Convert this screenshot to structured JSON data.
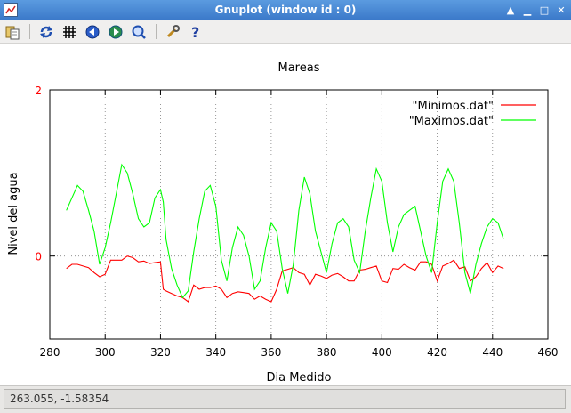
{
  "window": {
    "title": "Gnuplot (window id : 0)"
  },
  "toolbar": {
    "icons": [
      "copy-clipboard-icon",
      "replot-icon",
      "grid-icon",
      "previous-zoom-icon",
      "next-zoom-icon",
      "autoscale-icon",
      "options-wrench-icon",
      "help-icon"
    ]
  },
  "status": {
    "text": "263.055, -1.58354"
  },
  "colors": {
    "minimos": "#ff0000",
    "maximos": "#00ff00",
    "ytick": "#ff0000"
  },
  "chart_data": {
    "type": "line",
    "title": "Mareas",
    "xlabel": "Dia Medido",
    "ylabel": "Nivel del agua",
    "xlim": [
      280,
      460
    ],
    "ylim": [
      -1,
      2
    ],
    "xticks": [
      "280",
      "300",
      "320",
      "340",
      "360",
      "380",
      "400",
      "420",
      "440",
      "460"
    ],
    "yticks": [
      "2",
      "0"
    ],
    "grid": "dotted",
    "legend": "top-right",
    "series": [
      {
        "name": "\"Minimos.dat\"",
        "x": [
          286,
          288,
          290,
          292,
          294,
          296,
          298,
          300,
          302,
          304,
          306,
          308,
          310,
          312,
          314,
          316,
          318,
          320,
          321,
          322,
          324,
          326,
          328,
          330,
          332,
          334,
          336,
          338,
          340,
          342,
          344,
          346,
          348,
          350,
          352,
          354,
          356,
          358,
          360,
          362,
          364,
          366,
          368,
          370,
          372,
          374,
          376,
          378,
          380,
          382,
          384,
          386,
          388,
          390,
          392,
          394,
          396,
          398,
          400,
          402,
          404,
          406,
          408,
          410,
          412,
          414,
          416,
          418,
          420,
          422,
          424,
          426,
          428,
          430,
          432,
          434,
          436,
          438,
          440,
          442,
          444
        ],
        "y": [
          -0.15,
          -0.1,
          -0.1,
          -0.12,
          -0.14,
          -0.2,
          -0.25,
          -0.22,
          -0.05,
          -0.05,
          -0.05,
          0.0,
          -0.02,
          -0.07,
          -0.06,
          -0.09,
          -0.08,
          -0.07,
          -0.4,
          -0.42,
          -0.45,
          -0.48,
          -0.5,
          -0.55,
          -0.35,
          -0.4,
          -0.38,
          -0.38,
          -0.36,
          -0.4,
          -0.5,
          -0.45,
          -0.43,
          -0.44,
          -0.45,
          -0.52,
          -0.48,
          -0.52,
          -0.55,
          -0.4,
          -0.18,
          -0.16,
          -0.14,
          -0.2,
          -0.22,
          -0.35,
          -0.22,
          -0.24,
          -0.27,
          -0.23,
          -0.21,
          -0.25,
          -0.3,
          -0.3,
          -0.17,
          -0.16,
          -0.14,
          -0.12,
          -0.3,
          -0.32,
          -0.15,
          -0.16,
          -0.1,
          -0.14,
          -0.17,
          -0.07,
          -0.07,
          -0.1,
          -0.3,
          -0.12,
          -0.09,
          -0.05,
          -0.15,
          -0.13,
          -0.3,
          -0.25,
          -0.15,
          -0.08,
          -0.2,
          -0.12,
          -0.15
        ]
      },
      {
        "name": "\"Maximos.dat\"",
        "x": [
          286,
          288,
          290,
          292,
          294,
          296,
          298,
          300,
          302,
          304,
          306,
          308,
          310,
          312,
          314,
          316,
          318,
          320,
          321,
          322,
          324,
          326,
          328,
          330,
          332,
          334,
          336,
          338,
          340,
          342,
          344,
          346,
          348,
          350,
          352,
          354,
          356,
          358,
          360,
          362,
          364,
          366,
          368,
          370,
          372,
          374,
          376,
          378,
          380,
          382,
          384,
          386,
          388,
          390,
          392,
          394,
          396,
          398,
          400,
          402,
          404,
          406,
          408,
          410,
          412,
          414,
          416,
          418,
          420,
          422,
          424,
          426,
          428,
          430,
          432,
          434,
          436,
          438,
          440,
          442,
          444
        ],
        "y": [
          0.55,
          0.7,
          0.85,
          0.78,
          0.55,
          0.3,
          -0.1,
          0.1,
          0.4,
          0.75,
          1.1,
          1.0,
          0.75,
          0.45,
          0.35,
          0.4,
          0.7,
          0.8,
          0.65,
          0.2,
          -0.15,
          -0.35,
          -0.5,
          -0.42,
          0.05,
          0.45,
          0.78,
          0.85,
          0.6,
          -0.05,
          -0.3,
          0.1,
          0.35,
          0.25,
          0.0,
          -0.4,
          -0.3,
          0.1,
          0.4,
          0.3,
          -0.15,
          -0.45,
          -0.1,
          0.55,
          0.95,
          0.75,
          0.3,
          0.05,
          -0.2,
          0.15,
          0.4,
          0.45,
          0.35,
          -0.05,
          -0.2,
          0.3,
          0.7,
          1.05,
          0.9,
          0.4,
          0.05,
          0.35,
          0.5,
          0.55,
          0.6,
          0.3,
          0.0,
          -0.2,
          0.4,
          0.9,
          1.05,
          0.9,
          0.4,
          -0.2,
          -0.45,
          -0.1,
          0.15,
          0.35,
          0.45,
          0.4,
          0.2
        ]
      }
    ]
  }
}
